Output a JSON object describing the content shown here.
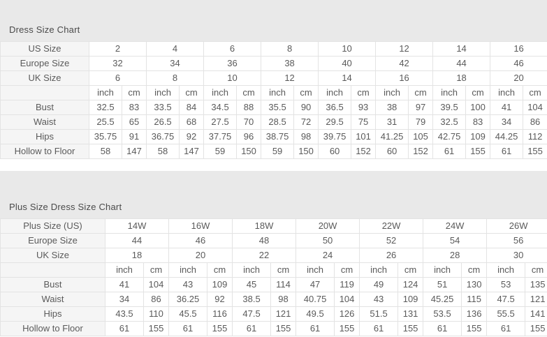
{
  "colors": {
    "band_bg": "#e9e9e9",
    "label_bg": "#f5f5f5",
    "border": "#e3e3e3",
    "title_text": "#4a4a4a",
    "cell_text": "#5a5a5a"
  },
  "tables": [
    {
      "title": "Dress Size Chart",
      "unit_labels": [
        "inch",
        "cm"
      ],
      "size_rows": [
        {
          "label": "US Size",
          "values": [
            "2",
            "4",
            "6",
            "8",
            "10",
            "12",
            "14",
            "16"
          ]
        },
        {
          "label": "Europe Size",
          "values": [
            "32",
            "34",
            "36",
            "38",
            "40",
            "42",
            "44",
            "46"
          ]
        },
        {
          "label": "UK Size",
          "values": [
            "6",
            "8",
            "10",
            "12",
            "14",
            "16",
            "18",
            "20"
          ]
        }
      ],
      "measure_rows": [
        {
          "label": "Bust",
          "pairs": [
            [
              "32.5",
              "83"
            ],
            [
              "33.5",
              "84"
            ],
            [
              "34.5",
              "88"
            ],
            [
              "35.5",
              "90"
            ],
            [
              "36.5",
              "93"
            ],
            [
              "38",
              "97"
            ],
            [
              "39.5",
              "100"
            ],
            [
              "41",
              "104"
            ]
          ]
        },
        {
          "label": "Waist",
          "pairs": [
            [
              "25.5",
              "65"
            ],
            [
              "26.5",
              "68"
            ],
            [
              "27.5",
              "70"
            ],
            [
              "28.5",
              "72"
            ],
            [
              "29.5",
              "75"
            ],
            [
              "31",
              "79"
            ],
            [
              "32.5",
              "83"
            ],
            [
              "34",
              "86"
            ]
          ]
        },
        {
          "label": "Hips",
          "pairs": [
            [
              "35.75",
              "91"
            ],
            [
              "36.75",
              "92"
            ],
            [
              "37.75",
              "96"
            ],
            [
              "38.75",
              "98"
            ],
            [
              "39.75",
              "101"
            ],
            [
              "41.25",
              "105"
            ],
            [
              "42.75",
              "109"
            ],
            [
              "44.25",
              "112"
            ]
          ]
        },
        {
          "label": "Hollow to Floor",
          "pairs": [
            [
              "58",
              "147"
            ],
            [
              "58",
              "147"
            ],
            [
              "59",
              "150"
            ],
            [
              "59",
              "150"
            ],
            [
              "60",
              "152"
            ],
            [
              "60",
              "152"
            ],
            [
              "61",
              "155"
            ],
            [
              "61",
              "155"
            ]
          ]
        }
      ]
    },
    {
      "title": "Plus Size Dress Size Chart",
      "unit_labels": [
        "inch",
        "cm"
      ],
      "size_rows": [
        {
          "label": "Plus Size (US)",
          "values": [
            "14W",
            "16W",
            "18W",
            "20W",
            "22W",
            "24W",
            "26W"
          ]
        },
        {
          "label": "Europe Size",
          "values": [
            "44",
            "46",
            "48",
            "50",
            "52",
            "54",
            "56"
          ]
        },
        {
          "label": "UK Size",
          "values": [
            "18",
            "20",
            "22",
            "24",
            "26",
            "28",
            "30"
          ]
        }
      ],
      "measure_rows": [
        {
          "label": "Bust",
          "pairs": [
            [
              "41",
              "104"
            ],
            [
              "43",
              "109"
            ],
            [
              "45",
              "114"
            ],
            [
              "47",
              "119"
            ],
            [
              "49",
              "124"
            ],
            [
              "51",
              "130"
            ],
            [
              "53",
              "135"
            ]
          ]
        },
        {
          "label": "Waist",
          "pairs": [
            [
              "34",
              "86"
            ],
            [
              "36.25",
              "92"
            ],
            [
              "38.5",
              "98"
            ],
            [
              "40.75",
              "104"
            ],
            [
              "43",
              "109"
            ],
            [
              "45.25",
              "115"
            ],
            [
              "47.5",
              "121"
            ]
          ]
        },
        {
          "label": "Hips",
          "pairs": [
            [
              "43.5",
              "110"
            ],
            [
              "45.5",
              "116"
            ],
            [
              "47.5",
              "121"
            ],
            [
              "49.5",
              "126"
            ],
            [
              "51.5",
              "131"
            ],
            [
              "53.5",
              "136"
            ],
            [
              "55.5",
              "141"
            ]
          ]
        },
        {
          "label": "Hollow to Floor",
          "pairs": [
            [
              "61",
              "155"
            ],
            [
              "61",
              "155"
            ],
            [
              "61",
              "155"
            ],
            [
              "61",
              "155"
            ],
            [
              "61",
              "155"
            ],
            [
              "61",
              "155"
            ],
            [
              "61",
              "155"
            ]
          ]
        }
      ]
    }
  ]
}
